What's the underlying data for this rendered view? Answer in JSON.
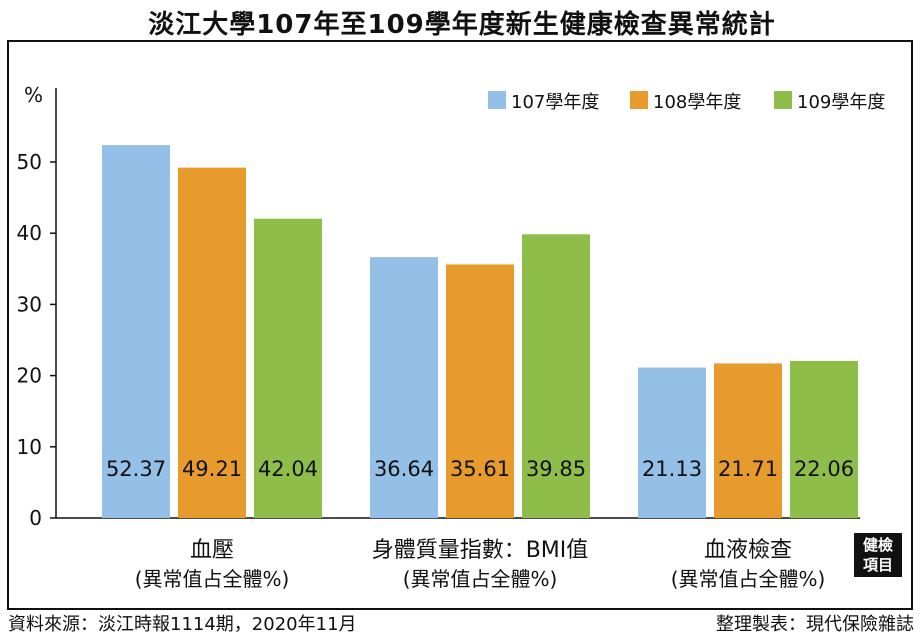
{
  "title": "淡江大學107年至109學年度新生健康檢查異常統計",
  "footer": {
    "source": "資料來源：淡江時報1114期，2020年11月",
    "credit": "整理製表：現代保險雜誌"
  },
  "tag": {
    "line1": "健檢",
    "line2": "項目"
  },
  "colors": {
    "s1": "#94bfe6",
    "s2": "#e79b2c",
    "s3": "#8fbd4a"
  },
  "chart_data": {
    "type": "bar",
    "title": "淡江大學107年至109學年度新生健康檢查異常統計",
    "ylabel": "%",
    "ylim": [
      0,
      60
    ],
    "yticks": [
      0,
      10,
      20,
      30,
      40,
      50
    ],
    "grid": false,
    "legend_position": "top-right",
    "categories": [
      {
        "line1": "血壓",
        "line2": "(異常值占全體%)"
      },
      {
        "line1": "身體質量指數：BMI值",
        "line2": "(異常值占全體%)"
      },
      {
        "line1": "血液檢查",
        "line2": "(異常值占全體%)"
      }
    ],
    "series": [
      {
        "name": "107學年度",
        "color": "#94bfe6",
        "values": [
          52.37,
          36.64,
          21.13
        ]
      },
      {
        "name": "108學年度",
        "color": "#e79b2c",
        "values": [
          49.21,
          35.61,
          21.71
        ]
      },
      {
        "name": "109學年度",
        "color": "#8fbd4a",
        "values": [
          42.04,
          39.85,
          22.06
        ]
      }
    ]
  }
}
